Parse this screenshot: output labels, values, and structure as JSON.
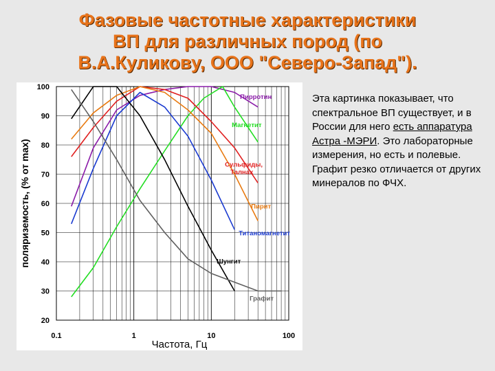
{
  "title": {
    "line1": "Фазовые частотные характеристики",
    "line2": "ВП для различных пород (по",
    "line3": "В.А.Куликову, ООО \"Северо-Запад\")."
  },
  "description": {
    "text_before": "Эта картинка показывает, что спектральное ВП существует, и в России для него ",
    "link_text": "есть аппаратура Астра -МЭРИ",
    "text_after": ". Это лабораторные измерения, но есть и полевые. Графит резко отличается от других минералов по ФЧХ."
  },
  "chart_data": {
    "type": "line",
    "xscale": "log",
    "xlim": [
      0.1,
      100
    ],
    "ylim": [
      20,
      100
    ],
    "xlabel": "Частота, Гц",
    "ylabel": "поляриземость, (% от max)",
    "xticks": [
      {
        "value": 0.1,
        "label": "0.1"
      },
      {
        "value": 1,
        "label": "1"
      },
      {
        "value": 10,
        "label": "10"
      },
      {
        "value": 100,
        "label": "100"
      }
    ],
    "yticks": [
      20,
      30,
      40,
      50,
      60,
      70,
      80,
      90,
      100
    ],
    "series": [
      {
        "name": "Пирротин",
        "color": "#8a1aa8",
        "x": [
          0.156,
          0.3,
          0.6,
          1.2,
          2.5,
          5,
          10,
          20,
          40
        ],
        "y": [
          59,
          79,
          92,
          97,
          99,
          100,
          100,
          98,
          93
        ]
      },
      {
        "name": "Магнетит",
        "color": "#22dd22",
        "x": [
          0.156,
          0.3,
          0.6,
          1.2,
          2.5,
          5,
          8,
          14,
          20,
          40
        ],
        "y": [
          28,
          38,
          52,
          65,
          78,
          90,
          96,
          100,
          93,
          81
        ]
      },
      {
        "name": "Сульфиды, Талнах",
        "color": "#e02020",
        "x": [
          0.156,
          0.3,
          0.6,
          1.2,
          2.5,
          5,
          10,
          20,
          40
        ],
        "y": [
          76,
          86,
          95,
          100,
          99,
          96,
          88,
          79,
          67
        ]
      },
      {
        "name": "Пирит",
        "color": "#e87a10",
        "x": [
          0.156,
          0.3,
          0.6,
          1.2,
          2.5,
          5,
          10,
          20,
          40
        ],
        "y": [
          82,
          91,
          97,
          100,
          98,
          92,
          84,
          70,
          54
        ]
      },
      {
        "name": "Титаномагнетит",
        "color": "#1a3ad0",
        "x": [
          0.156,
          0.3,
          0.6,
          1.2,
          2.5,
          5,
          10,
          20
        ],
        "y": [
          53,
          72,
          90,
          98,
          93,
          83,
          68,
          51
        ]
      },
      {
        "name": "Шунгит",
        "color": "#000000",
        "x": [
          0.156,
          0.3,
          0.6,
          1.2,
          2.5,
          5,
          10,
          20
        ],
        "y": [
          89,
          100,
          100,
          90,
          75,
          59,
          44,
          30
        ]
      },
      {
        "name": "Графит",
        "color": "#606060",
        "x": [
          0.156,
          0.3,
          0.6,
          1.2,
          2.5,
          5,
          10,
          20,
          40,
          80
        ],
        "y": [
          99,
          88,
          75,
          61,
          50,
          41,
          36,
          33,
          30,
          30
        ]
      }
    ]
  }
}
